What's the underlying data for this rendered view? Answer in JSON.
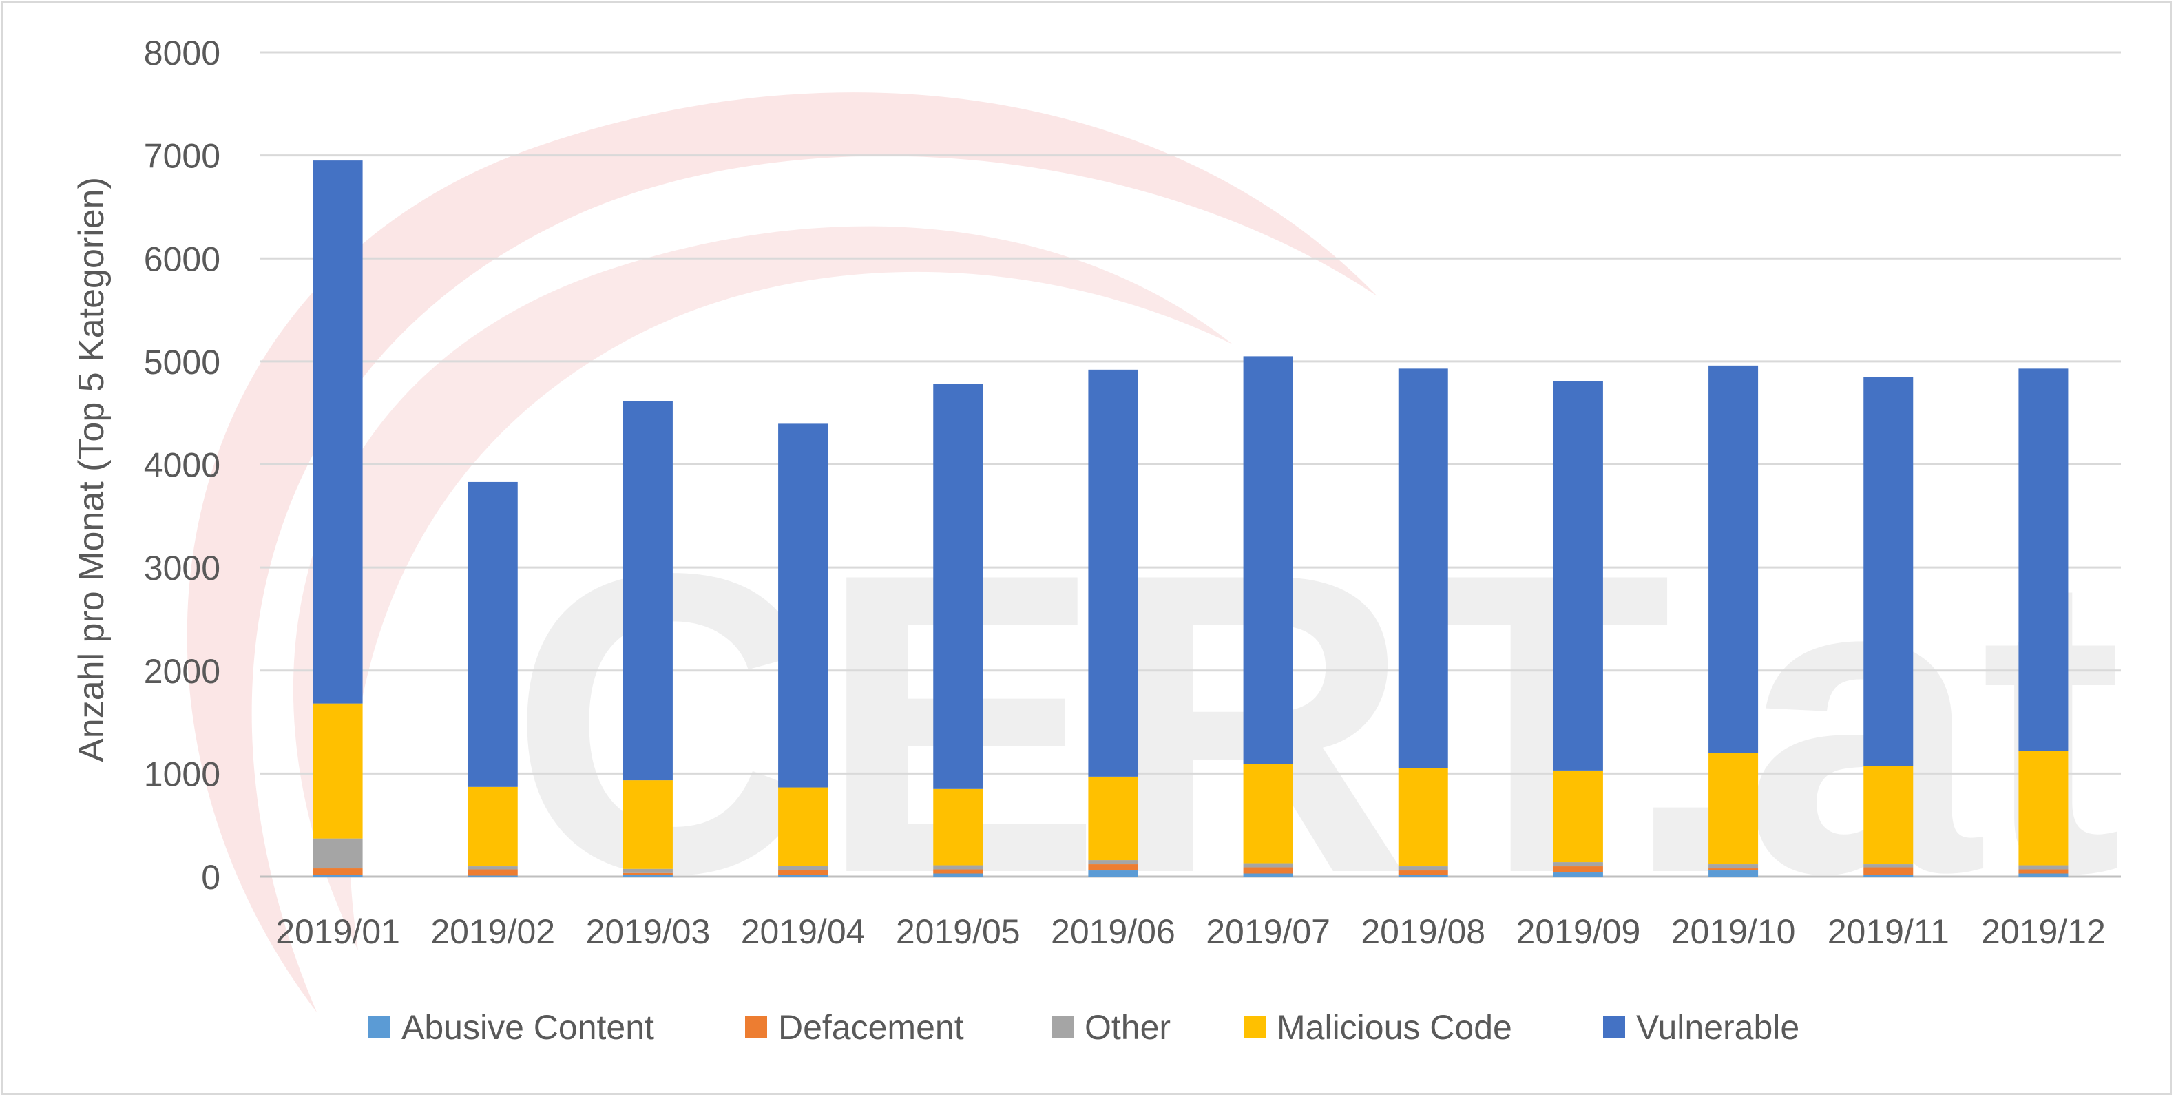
{
  "chart_data": {
    "type": "bar",
    "stacked": true,
    "title": "",
    "xlabel": "",
    "ylabel": "Anzahl pro Monat (Top 5 Kategorien)",
    "ylim": [
      0,
      8000
    ],
    "yticks": [
      "0",
      "1000",
      "2000",
      "3000",
      "4000",
      "5000",
      "6000",
      "7000",
      "8000"
    ],
    "grid": true,
    "legend_position": "bottom",
    "watermark": "CERT.at",
    "categories": [
      "2019/01",
      "2019/02",
      "2019/03",
      "2019/04",
      "2019/05",
      "2019/06",
      "2019/07",
      "2019/08",
      "2019/09",
      "2019/10",
      "2019/11",
      "2019/12"
    ],
    "series": [
      {
        "name": "Abusive Content",
        "color": "#5b9bd5",
        "values": [
          20,
          10,
          15,
          15,
          30,
          60,
          30,
          20,
          40,
          60,
          20,
          30
        ]
      },
      {
        "name": "Defacement",
        "color": "#ed7d31",
        "values": [
          60,
          60,
          20,
          50,
          40,
          60,
          60,
          40,
          60,
          20,
          70,
          40
        ]
      },
      {
        "name": "Other",
        "color": "#a5a5a5",
        "values": [
          290,
          30,
          40,
          40,
          40,
          40,
          40,
          40,
          40,
          40,
          30,
          40
        ]
      },
      {
        "name": "Malicious Code",
        "color": "#ffc000",
        "values": [
          1310,
          770,
          860,
          760,
          740,
          810,
          960,
          950,
          890,
          1080,
          950,
          1110
        ]
      },
      {
        "name": "Vulnerable",
        "color": "#4472c4",
        "values": [
          5270,
          2960,
          3680,
          3530,
          3930,
          3950,
          3960,
          3880,
          3780,
          3760,
          3780,
          3710
        ]
      }
    ]
  }
}
